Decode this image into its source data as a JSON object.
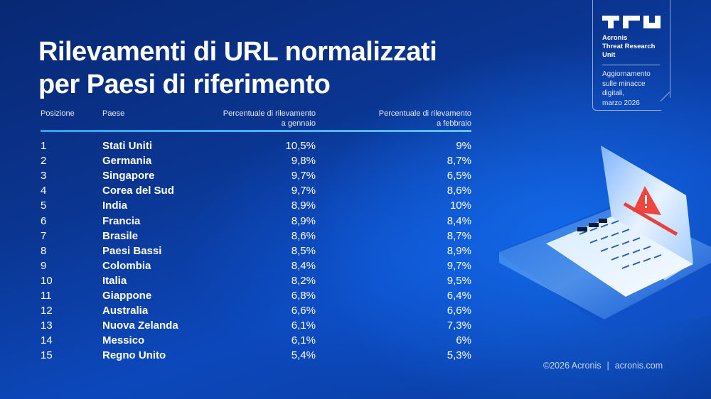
{
  "title": {
    "line1": "Rilevamenti di URL normalizzati",
    "line2": "per Paesi di riferimento"
  },
  "badge": {
    "logo": "TRU",
    "org_line1": "Acronis",
    "org_line2": "Threat Research",
    "org_line3": "Unit",
    "update_line1": "Aggiornamento",
    "update_line2": "sulle minacce",
    "update_line3": "digitali,",
    "update_line4": "marzo 2026"
  },
  "table": {
    "headers": {
      "position": "Posizione",
      "country": "Paese",
      "jan_line1": "Percentuale di rilevamento",
      "jan_line2": "a gennaio",
      "feb_line1": "Percentuale di rilevamento",
      "feb_line2": "a febbraio"
    },
    "rows": [
      {
        "pos": "1",
        "country": "Stati Uniti",
        "jan": "10,5%",
        "feb": "9%"
      },
      {
        "pos": "2",
        "country": "Germania",
        "jan": "9,8%",
        "feb": "8,7%"
      },
      {
        "pos": "3",
        "country": "Singapore",
        "jan": "9,7%",
        "feb": "6,5%"
      },
      {
        "pos": "4",
        "country": "Corea del Sud",
        "jan": "9,7%",
        "feb": "8,6%"
      },
      {
        "pos": "5",
        "country": "India",
        "jan": "8,9%",
        "feb": "10%"
      },
      {
        "pos": "6",
        "country": "Francia",
        "jan": "8,9%",
        "feb": "8,4%"
      },
      {
        "pos": "7",
        "country": "Brasile",
        "jan": "8,6%",
        "feb": "8,7%"
      },
      {
        "pos": "8",
        "country": "Paesi Bassi",
        "jan": "8,5%",
        "feb": "8,9%"
      },
      {
        "pos": "9",
        "country": "Colombia",
        "jan": "8,4%",
        "feb": "9,7%"
      },
      {
        "pos": "10",
        "country": "Italia",
        "jan": "8,2%",
        "feb": "9,5%"
      },
      {
        "pos": "11",
        "country": "Giappone",
        "jan": "6,8%",
        "feb": "6,4%"
      },
      {
        "pos": "12",
        "country": "Australia",
        "jan": "6,6%",
        "feb": "6,6%"
      },
      {
        "pos": "13",
        "country": "Nuova Zelanda",
        "jan": "6,1%",
        "feb": "7,3%"
      },
      {
        "pos": "14",
        "country": "Messico",
        "jan": "6,1%",
        "feb": "6%"
      },
      {
        "pos": "15",
        "country": "Regno Unito",
        "jan": "5,4%",
        "feb": "5,3%"
      }
    ]
  },
  "footer": {
    "copyright": "©2026 Acronis",
    "separator": "|",
    "website": "acronis.com"
  },
  "illustration": {
    "icon": "laptop-warning-icon",
    "warning_color": "#f0453c"
  },
  "colors": {
    "background_dark": "#082873",
    "background_light": "#0c48bb",
    "divider": "#29a3f0",
    "text": "#ffffff"
  }
}
